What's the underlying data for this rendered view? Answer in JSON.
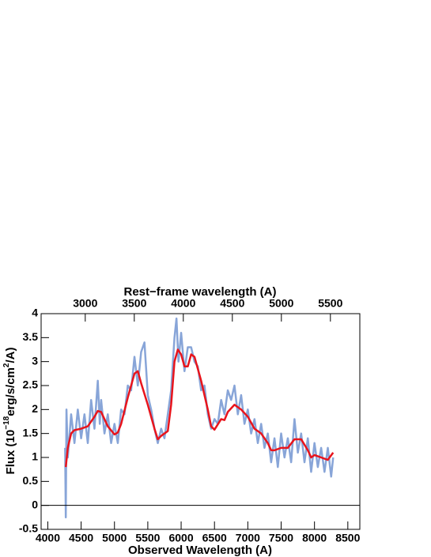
{
  "chart_data": {
    "type": "line",
    "x_label": "Observed Wavelength (A)",
    "x2_label": "Rest−frame wavelength (A)",
    "y_label_parts": [
      "Flux (10",
      "−18",
      "erg/s/cm",
      "2",
      "/A)"
    ],
    "xlim": [
      3900,
      8680
    ],
    "xticks": [
      4000,
      4500,
      5000,
      5500,
      6000,
      6500,
      7000,
      7500,
      8000,
      8500
    ],
    "x2lim": [
      2550,
      5800
    ],
    "x2ticks": [
      3000,
      3500,
      4000,
      4500,
      5000,
      5500
    ],
    "ylim": [
      -0.5,
      4
    ],
    "yticks": [
      -0.5,
      0,
      0.5,
      1,
      1.5,
      2,
      2.5,
      3,
      3.5,
      4
    ],
    "zero_line": 0,
    "series": [
      {
        "color": "#7b9bd4",
        "x": [
          4260,
          4270,
          4280,
          4300,
          4350,
          4400,
          4450,
          4500,
          4550,
          4600,
          4650,
          4700,
          4750,
          4780,
          4800,
          4850,
          4900,
          4950,
          5000,
          5050,
          5100,
          5150,
          5200,
          5250,
          5300,
          5350,
          5400,
          5450,
          5500,
          5550,
          5600,
          5650,
          5700,
          5750,
          5800,
          5850,
          5900,
          5930,
          5960,
          6000,
          6050,
          6100,
          6150,
          6200,
          6250,
          6300,
          6350,
          6400,
          6450,
          6500,
          6550,
          6600,
          6650,
          6700,
          6750,
          6800,
          6850,
          6900,
          6950,
          7000,
          7050,
          7100,
          7150,
          7200,
          7250,
          7300,
          7350,
          7400,
          7450,
          7500,
          7550,
          7600,
          7650,
          7700,
          7750,
          7800,
          7850,
          7900,
          7950,
          8000,
          8050,
          8100,
          8150,
          8200,
          8250,
          8280
        ],
        "values": [
          1.2,
          -0.25,
          2.0,
          1.0,
          1.9,
          1.3,
          2.0,
          1.4,
          1.9,
          1.3,
          2.2,
          1.6,
          2.6,
          1.7,
          2.2,
          1.5,
          1.9,
          1.3,
          1.7,
          1.3,
          2.0,
          1.9,
          2.5,
          2.4,
          3.1,
          2.5,
          3.2,
          3.4,
          2.3,
          2.0,
          1.6,
          1.3,
          1.6,
          1.4,
          1.9,
          2.4,
          3.5,
          3.9,
          3.0,
          3.6,
          2.8,
          3.3,
          3.3,
          3.0,
          2.9,
          2.4,
          2.5,
          1.9,
          1.6,
          1.8,
          1.7,
          2.2,
          1.9,
          2.4,
          2.2,
          2.5,
          1.9,
          2.3,
          1.7,
          2.0,
          1.5,
          1.8,
          1.3,
          1.7,
          1.2,
          1.5,
          0.9,
          1.4,
          0.8,
          1.5,
          1.0,
          1.4,
          0.9,
          1.8,
          1.1,
          1.5,
          0.9,
          1.4,
          0.7,
          1.3,
          0.8,
          1.2,
          0.7,
          1.2,
          0.6,
          1.0
        ]
      },
      {
        "color": "#e8141c",
        "x": [
          4270,
          4300,
          4350,
          4400,
          4500,
          4600,
          4700,
          4750,
          4800,
          4900,
          5000,
          5050,
          5100,
          5200,
          5300,
          5350,
          5400,
          5500,
          5600,
          5650,
          5700,
          5800,
          5850,
          5900,
          5950,
          6000,
          6050,
          6100,
          6150,
          6200,
          6300,
          6400,
          6450,
          6500,
          6600,
          6650,
          6700,
          6800,
          6900,
          7000,
          7100,
          7200,
          7300,
          7350,
          7400,
          7500,
          7600,
          7700,
          7800,
          7900,
          7950,
          8000,
          8100,
          8200,
          8280
        ],
        "values": [
          0.8,
          1.2,
          1.5,
          1.57,
          1.6,
          1.65,
          1.85,
          1.97,
          1.95,
          1.65,
          1.48,
          1.52,
          1.7,
          2.25,
          2.75,
          2.8,
          2.55,
          2.1,
          1.6,
          1.38,
          1.45,
          1.55,
          2.1,
          3.0,
          3.25,
          3.15,
          2.9,
          2.9,
          3.15,
          3.1,
          2.6,
          2.0,
          1.65,
          1.58,
          1.8,
          1.78,
          1.95,
          2.1,
          2.0,
          1.85,
          1.6,
          1.5,
          1.3,
          1.15,
          1.15,
          1.2,
          1.2,
          1.38,
          1.38,
          1.15,
          1.0,
          1.05,
          1.0,
          0.95,
          1.1
        ]
      }
    ]
  }
}
